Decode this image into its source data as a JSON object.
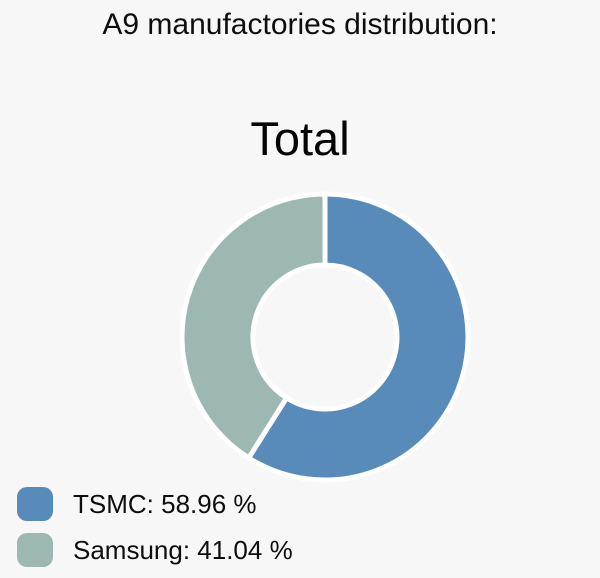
{
  "page": {
    "background": "#f7f7f8",
    "header": "A9 manufactories distribution:"
  },
  "chart_data": {
    "type": "pie",
    "subtype": "donut",
    "title": "Total",
    "labels": [
      "TSMC",
      "Samsung"
    ],
    "values": [
      58.96,
      41.04
    ],
    "unit": "%",
    "colors": [
      "#588aba",
      "#9db8b3"
    ],
    "border_color": "#ffffff",
    "start_angle_deg": 0,
    "direction": "clockwise",
    "donut_hole_ratio": 0.5,
    "legend_position": "bottom-left",
    "legend": [
      {
        "label": "TSMC: 58.96 %",
        "color": "#588aba"
      },
      {
        "label": "Samsung: 41.04 %",
        "color": "#9db8b3"
      }
    ]
  }
}
